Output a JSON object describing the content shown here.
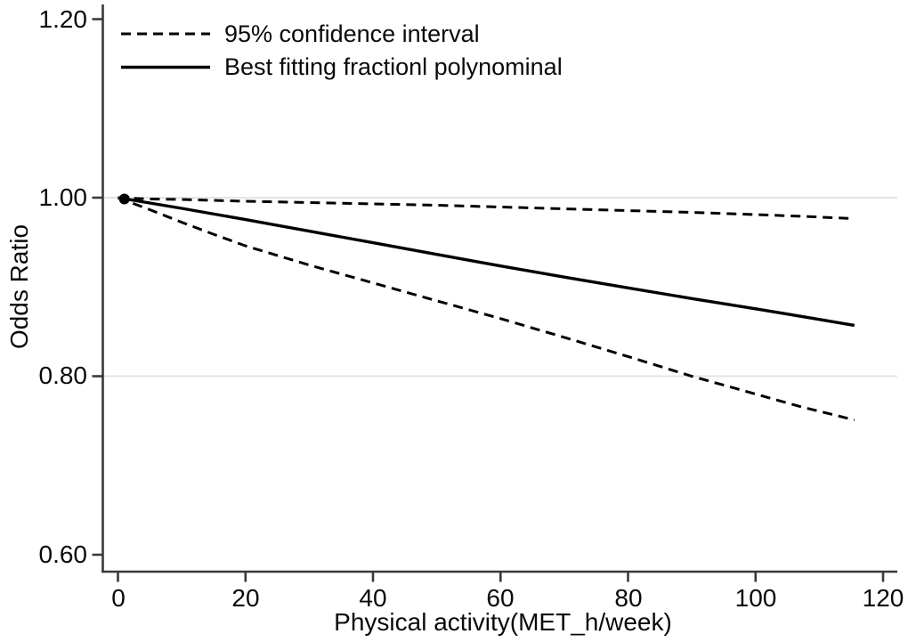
{
  "figure": {
    "background": "#ffffff",
    "axis_color": "#3a3a3a",
    "line_color": "#000000",
    "gridline_color": "#dce8ec",
    "text_color": "#0a0a0a"
  },
  "legend": {
    "items": [
      {
        "label": "95% confidence interval",
        "style": "dashed"
      },
      {
        "label": "Best fitting fractionl polynominal",
        "style": "solid"
      }
    ]
  },
  "axes": {
    "y": {
      "title": "Odds Ratio",
      "ticks": [
        0.6,
        0.8,
        1.0,
        1.2
      ],
      "tick_labels": [
        "0.60",
        "0.80",
        "1.00",
        "1.20"
      ]
    },
    "x": {
      "title": "Physical activity(MET_h/week)",
      "ticks": [
        0,
        20,
        40,
        60,
        80,
        100,
        120
      ],
      "tick_labels": [
        "0",
        "20",
        "40",
        "60",
        "80",
        "100",
        "120"
      ]
    }
  },
  "chart_data": {
    "type": "line",
    "title": "",
    "xlabel": "Physical activity(MET_h/week)",
    "ylabel": "Odds Ratio",
    "xlim": [
      0,
      120
    ],
    "ylim": [
      0.6,
      1.2
    ],
    "x_ticks": [
      0,
      20,
      40,
      60,
      80,
      100,
      120
    ],
    "y_ticks": [
      0.6,
      0.8,
      1.0,
      1.2
    ],
    "gridlines_y": [
      0.8,
      1.0
    ],
    "grid": "horizontal-only",
    "legend_position": "top-left-inside",
    "origin_marker": {
      "x": 1.0,
      "y": 0.9985
    },
    "series": [
      {
        "name": "95% CI upper bound",
        "style": "dashed",
        "points": [
          [
            0,
            1.0
          ],
          [
            5,
            0.9985
          ],
          [
            10,
            0.998
          ],
          [
            20,
            0.996
          ],
          [
            30,
            0.9945
          ],
          [
            40,
            0.993
          ],
          [
            50,
            0.9915
          ],
          [
            60,
            0.9895
          ],
          [
            70,
            0.9875
          ],
          [
            80,
            0.9855
          ],
          [
            90,
            0.9835
          ],
          [
            100,
            0.981
          ],
          [
            108,
            0.979
          ],
          [
            115.5,
            0.9765
          ]
        ]
      },
      {
        "name": "Best fitting fractional polynomial",
        "style": "solid",
        "points": [
          [
            0,
            1.0
          ],
          [
            10,
            0.988
          ],
          [
            20,
            0.9755
          ],
          [
            30,
            0.9625
          ],
          [
            40,
            0.9495
          ],
          [
            50,
            0.9365
          ],
          [
            60,
            0.9235
          ],
          [
            70,
            0.911
          ],
          [
            80,
            0.899
          ],
          [
            90,
            0.887
          ],
          [
            100,
            0.8755
          ],
          [
            108,
            0.866
          ],
          [
            115.5,
            0.857
          ]
        ]
      },
      {
        "name": "95% CI lower bound",
        "style": "dashed",
        "points": [
          [
            0,
            1.0
          ],
          [
            5,
            0.9865
          ],
          [
            10,
            0.9725
          ],
          [
            15,
            0.959
          ],
          [
            20,
            0.946
          ],
          [
            30,
            0.9245
          ],
          [
            40,
            0.9045
          ],
          [
            50,
            0.8845
          ],
          [
            60,
            0.8645
          ],
          [
            70,
            0.8435
          ],
          [
            80,
            0.822
          ],
          [
            90,
            0.8
          ],
          [
            100,
            0.78
          ],
          [
            107,
            0.766
          ],
          [
            115.5,
            0.751
          ]
        ]
      }
    ]
  }
}
